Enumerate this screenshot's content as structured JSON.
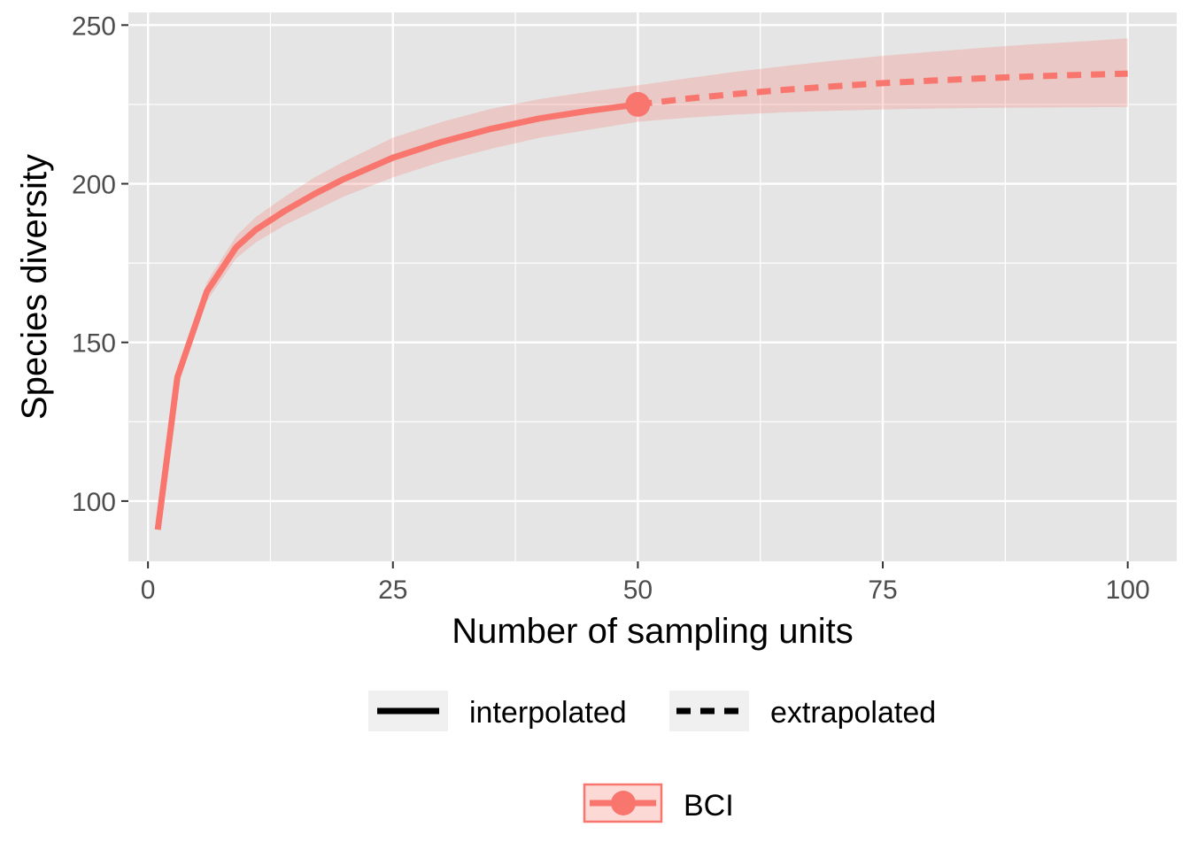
{
  "chart_data": {
    "type": "line",
    "xlabel": "Number of sampling units",
    "ylabel": "Species diversity",
    "xlim": [
      -2,
      105
    ],
    "ylim": [
      81,
      254
    ],
    "x_ticks": [
      0,
      25,
      50,
      75,
      100
    ],
    "y_ticks": [
      100,
      150,
      200,
      250
    ],
    "grid": true,
    "legend_position": "bottom",
    "colors": {
      "series": "#F8766D",
      "panel": "#E5E5E5",
      "grid": "#FFFFFF"
    },
    "series": [
      {
        "name": "BCI",
        "observed_point": {
          "x": 50,
          "y": 225
        },
        "interpolated": {
          "x": [
            1,
            3,
            6,
            9,
            11,
            14,
            17,
            20,
            25,
            30,
            35,
            40,
            45,
            50
          ],
          "y": [
            91,
            139,
            166,
            180,
            185.5,
            191.5,
            196.8,
            201.5,
            208.2,
            213.2,
            217.3,
            220.6,
            223,
            225
          ],
          "lower": [
            91,
            137,
            163,
            176.5,
            181.5,
            187,
            191.5,
            196,
            202,
            207,
            211,
            214.5,
            217,
            219.5
          ],
          "upper": [
            91,
            141,
            169,
            183.5,
            189.5,
            196,
            202,
            207,
            214.5,
            219.5,
            223.6,
            226.7,
            229,
            231
          ]
        },
        "extrapolated": {
          "x": [
            50,
            55,
            60,
            65,
            70,
            75,
            80,
            85,
            90,
            95,
            100
          ],
          "y": [
            225,
            226.8,
            228.3,
            229.6,
            230.7,
            231.7,
            232.5,
            233.2,
            233.8,
            234.3,
            234.7
          ],
          "lower": [
            219.5,
            220.8,
            221.8,
            222.5,
            223,
            223.4,
            223.7,
            223.9,
            224,
            224.1,
            224.2
          ],
          "upper": [
            231,
            233.2,
            235.3,
            237.1,
            238.8,
            240.3,
            241.6,
            242.8,
            243.9,
            244.8,
            245.8
          ]
        }
      }
    ]
  },
  "legend": {
    "linetype": [
      {
        "label": "interpolated",
        "style": "solid"
      },
      {
        "label": "extrapolated",
        "style": "dashed"
      }
    ],
    "group": {
      "label": "BCI"
    }
  }
}
